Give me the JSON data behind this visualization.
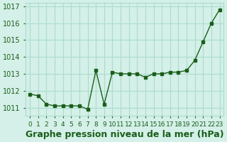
{
  "x": [
    0,
    1,
    2,
    3,
    4,
    5,
    6,
    7,
    8,
    9,
    10,
    11,
    12,
    13,
    14,
    15,
    16,
    17,
    18,
    19,
    20,
    21,
    22,
    23
  ],
  "y": [
    1011.8,
    1011.7,
    1011.2,
    1011.1,
    1011.1,
    1011.1,
    1011.1,
    1010.9,
    1013.2,
    1011.2,
    1013.1,
    1013.0,
    1013.0,
    1013.0,
    1012.8,
    1013.0,
    1013.0,
    1013.1,
    1013.1,
    1013.2,
    1013.8,
    1014.9,
    1016.0,
    1016.8
  ],
  "line_color": "#1a5e1a",
  "marker_color": "#1a5e1a",
  "bg_color": "#d4f0e8",
  "grid_color": "#aaddcc",
  "xlabel": "Graphe pression niveau de la mer (hPa)",
  "xlabel_fontsize": 9,
  "xlabel_color": "#1a5e1a",
  "xtick_labels": [
    "0",
    "1",
    "2",
    "3",
    "4",
    "5",
    "6",
    "7",
    "8",
    "9",
    "10",
    "11",
    "12",
    "13",
    "14",
    "15",
    "16",
    "17",
    "18",
    "19",
    "20",
    "21",
    "22",
    "23"
  ],
  "ytick_min": 1011,
  "ytick_max": 1017,
  "ytick_step": 1,
  "ylim_min": 1010.5,
  "ylim_max": 1017.2,
  "tick_fontsize": 7,
  "tick_color": "#1a5e1a"
}
